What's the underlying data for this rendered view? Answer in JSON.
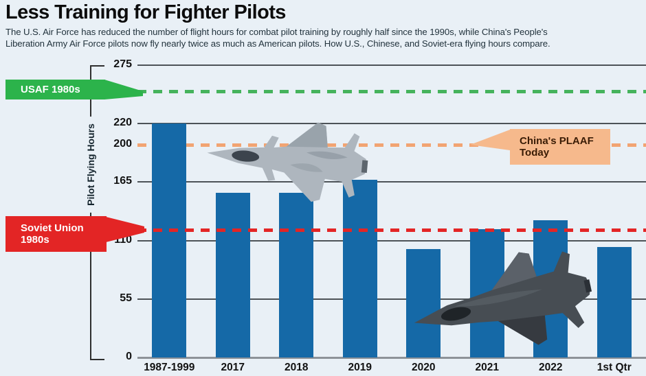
{
  "header": {
    "title": "Less Training for Fighter Pilots",
    "subtitle_line1": "The U.S. Air Force has reduced the number of flight hours for combat pilot training by roughly half since the 1990s, while China's People's",
    "subtitle_line2": "Liberation Army Air Force pilots now fly nearly twice as much as American pilots. How U.S., Chinese, and Soviet-era flying hours compare."
  },
  "chart_data": {
    "type": "bar",
    "title": "Less Training for Fighter Pilots",
    "ylabel": "Pilot Flying Hours",
    "categories": [
      "1987-1999",
      "2017",
      "2018",
      "2019",
      "2020",
      "2021",
      "2022",
      "1st Qtr"
    ],
    "values": [
      220,
      155,
      155,
      167,
      102,
      121,
      129,
      104
    ],
    "yticks": [
      275,
      220,
      200,
      165,
      110,
      55,
      0
    ],
    "ylim": [
      0,
      275
    ],
    "grid": "horizontal",
    "legend_position": "none",
    "bar_color": "#1569a7",
    "background_color": "#e9f0f6",
    "reference_lines": [
      {
        "id": "usaf-1980s",
        "label": "USAF 1980s",
        "value": 250,
        "color": "#45b35c",
        "style": "dashed"
      },
      {
        "id": "china-plaaf-today",
        "label": "China's PLAAF Today",
        "value": 200,
        "color": "#f2a472",
        "style": "dashed"
      },
      {
        "id": "soviet-union-1980s",
        "label": "Soviet Union 1980s",
        "value": 120,
        "color": "#e32525",
        "style": "dashed"
      }
    ]
  },
  "annotations": {
    "usaf": {
      "label": "USAF 1980s",
      "bg": "#2cb34b",
      "text_color": "#ffffff"
    },
    "soviet": {
      "label_line1": "Soviet Union",
      "label_line2": "1980s",
      "bg": "#e32525",
      "text_color": "#ffffff"
    },
    "china": {
      "label_line1": "China's PLAAF",
      "label_line2": "Today",
      "bg": "#f6b98c",
      "text_color": "#3a1c05"
    }
  },
  "decorations": {
    "jet1": "chinese-j20-fighter-jet",
    "jet2": "us-f35-fighter-jet"
  }
}
